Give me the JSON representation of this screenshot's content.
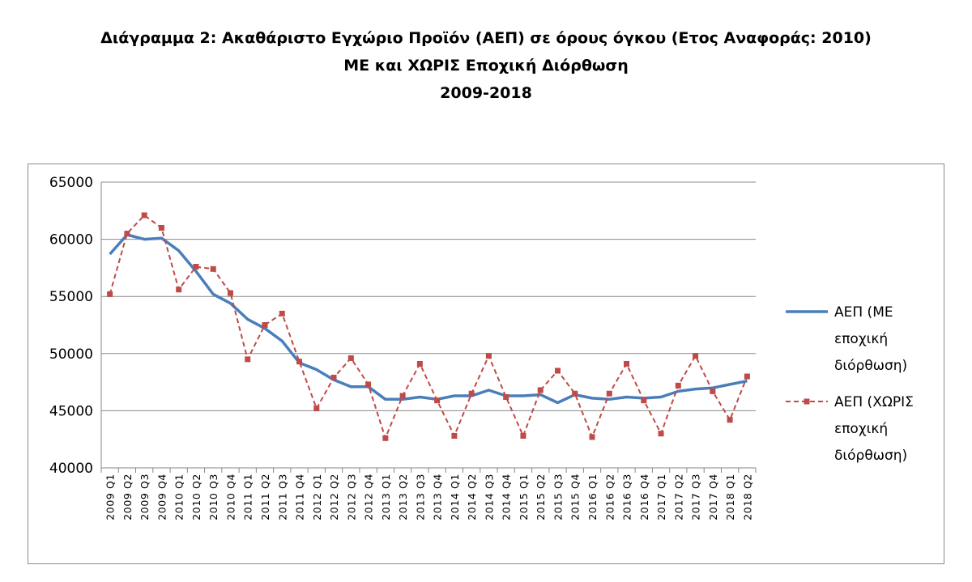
{
  "title": {
    "line1": "Διάγραμμα 2: Ακαθάριστο Εγχώριο Προϊόν (ΑΕΠ) σε όρους όγκου (Ετος Αναφοράς: 2010)",
    "line2": "ΜΕ και ΧΩΡΙΣ Εποχική Διόρθωση",
    "line3": "2009-2018"
  },
  "chart_data": {
    "type": "line",
    "title": "Διάγραμμα 2: Ακαθάριστο Εγχώριο Προϊόν (ΑΕΠ) σε όρους όγκου (Ετος Αναφοράς: 2010) ΜΕ και ΧΩΡΙΣ Εποχική Διόρθωση 2009-2018",
    "xlabel": "",
    "ylabel": "",
    "ylim": [
      40000,
      65000
    ],
    "yticks": [
      40000,
      45000,
      50000,
      55000,
      60000,
      65000
    ],
    "grid": true,
    "legend_position": "right",
    "categories": [
      "2009 Q1",
      "2009 Q2",
      "2009 Q3",
      "2009 Q4",
      "2010 Q1",
      "2010 Q2",
      "2010 Q3",
      "2010 Q4",
      "2011 Q1",
      "2011 Q2",
      "2011 Q3",
      "2011 Q4",
      "2012 Q1",
      "2012 Q2",
      "2012 Q3",
      "2012 Q4",
      "2013 Q1",
      "2013 Q2",
      "2013 Q3",
      "2013 Q4",
      "2014 Q1",
      "2014 Q2",
      "2014 Q3",
      "2014 Q4",
      "2015 Q1",
      "2015 Q2",
      "2015 Q3",
      "2015 Q4",
      "2016 Q1",
      "2016 Q2",
      "2016 Q3",
      "2016 Q4",
      "2017 Q1",
      "2017 Q2",
      "2017 Q3",
      "2017 Q4",
      "2018 Q1",
      "2018 Q2"
    ],
    "series": [
      {
        "name_lines": [
          "ΑΕΠ (ΜΕ",
          "εποχική",
          "διόρθωση)"
        ],
        "color": "#4a7ebb",
        "style": "solid",
        "values": [
          58700,
          60400,
          60000,
          60100,
          59000,
          57200,
          55200,
          54400,
          53000,
          52200,
          51100,
          49200,
          48600,
          47700,
          47100,
          47100,
          46000,
          46000,
          46200,
          46000,
          46300,
          46300,
          46800,
          46300,
          46300,
          46400,
          45700,
          46400,
          46100,
          46000,
          46200,
          46100,
          46200,
          46700,
          46900,
          47000,
          47300,
          47600
        ]
      },
      {
        "name_lines": [
          "ΑΕΠ (ΧΩΡΙΣ",
          "εποχική",
          "διόρθωση)"
        ],
        "color": "#be4b48",
        "style": "dashed-square-markers",
        "values": [
          55200,
          60500,
          62100,
          61000,
          55600,
          57600,
          57400,
          55300,
          49500,
          52500,
          53500,
          49300,
          45200,
          47900,
          49600,
          47300,
          42600,
          46300,
          49100,
          45900,
          42800,
          46500,
          49800,
          46200,
          42800,
          46800,
          48500,
          46500,
          42700,
          46500,
          49100,
          45900,
          43000,
          47200,
          49800,
          46700,
          44200,
          48000
        ]
      }
    ]
  }
}
